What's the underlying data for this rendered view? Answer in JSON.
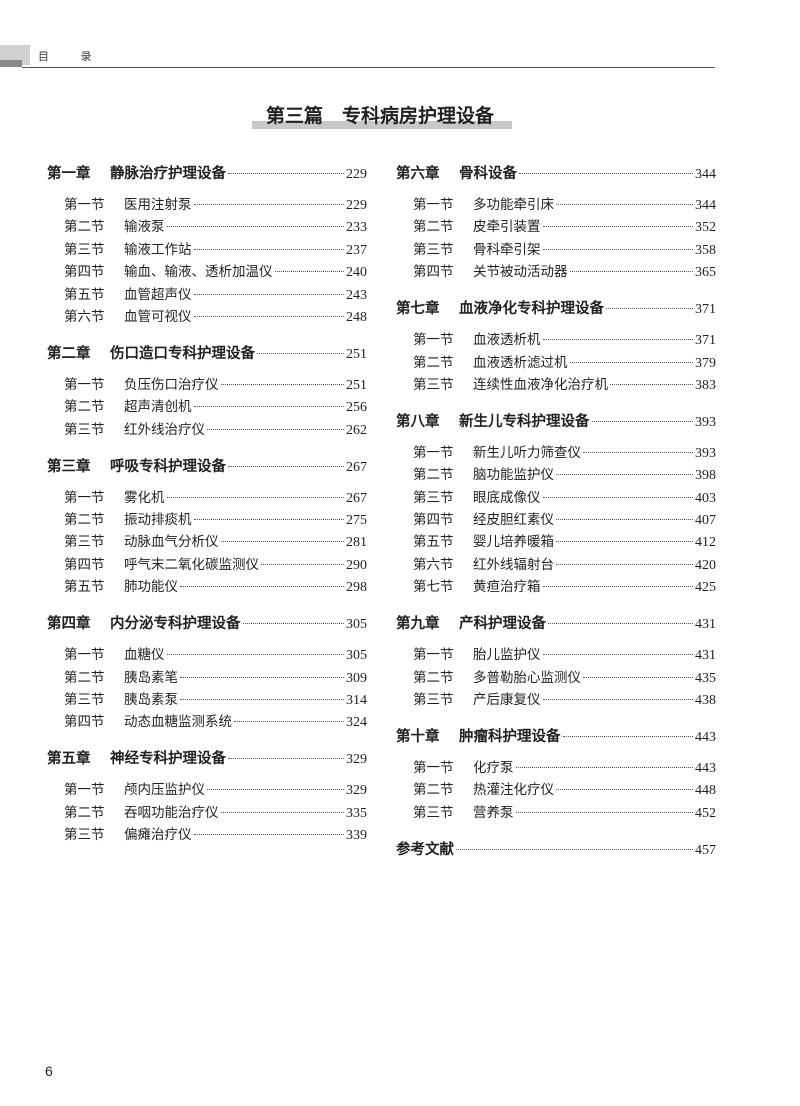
{
  "header": {
    "running_head": "目 录"
  },
  "part_title": "第三篇　专科病房护理设备",
  "left_column": [
    {
      "label": "第一章",
      "title": "静脉治疗护理设备",
      "page": "229",
      "sections": [
        {
          "label": "第一节",
          "title": "医用注射泵",
          "page": "229"
        },
        {
          "label": "第二节",
          "title": "输液泵",
          "page": "233"
        },
        {
          "label": "第三节",
          "title": "输液工作站",
          "page": "237"
        },
        {
          "label": "第四节",
          "title": "输血、输液、透析加温仪",
          "page": "240"
        },
        {
          "label": "第五节",
          "title": "血管超声仪",
          "page": "243"
        },
        {
          "label": "第六节",
          "title": "血管可视仪",
          "page": "248"
        }
      ]
    },
    {
      "label": "第二章",
      "title": "伤口造口专科护理设备",
      "page": "251",
      "sections": [
        {
          "label": "第一节",
          "title": "负压伤口治疗仪",
          "page": "251"
        },
        {
          "label": "第二节",
          "title": "超声清创机",
          "page": "256"
        },
        {
          "label": "第三节",
          "title": "红外线治疗仪",
          "page": "262"
        }
      ]
    },
    {
      "label": "第三章",
      "title": "呼吸专科护理设备",
      "page": "267",
      "sections": [
        {
          "label": "第一节",
          "title": "雾化机",
          "page": "267"
        },
        {
          "label": "第二节",
          "title": "振动排痰机",
          "page": "275"
        },
        {
          "label": "第三节",
          "title": "动脉血气分析仪",
          "page": "281"
        },
        {
          "label": "第四节",
          "title": "呼气末二氧化碳监测仪",
          "page": "290"
        },
        {
          "label": "第五节",
          "title": "肺功能仪",
          "page": "298"
        }
      ]
    },
    {
      "label": "第四章",
      "title": "内分泌专科护理设备",
      "page": "305",
      "sections": [
        {
          "label": "第一节",
          "title": "血糖仪",
          "page": "305"
        },
        {
          "label": "第二节",
          "title": "胰岛素笔",
          "page": "309"
        },
        {
          "label": "第三节",
          "title": "胰岛素泵",
          "page": "314"
        },
        {
          "label": "第四节",
          "title": "动态血糖监测系统",
          "page": "324"
        }
      ]
    },
    {
      "label": "第五章",
      "title": "神经专科护理设备",
      "page": "329",
      "sections": [
        {
          "label": "第一节",
          "title": "颅内压监护仪",
          "page": "329"
        },
        {
          "label": "第二节",
          "title": "吞咽功能治疗仪",
          "page": "335"
        },
        {
          "label": "第三节",
          "title": "偏瘫治疗仪",
          "page": "339"
        }
      ]
    }
  ],
  "right_column": [
    {
      "label": "第六章",
      "title": "骨科设备",
      "page": "344",
      "sections": [
        {
          "label": "第一节",
          "title": "多功能牵引床",
          "page": "344"
        },
        {
          "label": "第二节",
          "title": "皮牵引装置",
          "page": "352"
        },
        {
          "label": "第三节",
          "title": "骨科牵引架",
          "page": "358"
        },
        {
          "label": "第四节",
          "title": "关节被动活动器",
          "page": "365"
        }
      ]
    },
    {
      "label": "第七章",
      "title": "血液净化专科护理设备",
      "page": "371",
      "sections": [
        {
          "label": "第一节",
          "title": "血液透析机",
          "page": "371"
        },
        {
          "label": "第二节",
          "title": "血液透析滤过机",
          "page": "379"
        },
        {
          "label": "第三节",
          "title": "连续性血液净化治疗机",
          "page": "383"
        }
      ]
    },
    {
      "label": "第八章",
      "title": "新生儿专科护理设备",
      "page": "393",
      "sections": [
        {
          "label": "第一节",
          "title": "新生儿听力筛查仪",
          "page": "393"
        },
        {
          "label": "第二节",
          "title": "脑功能监护仪",
          "page": "398"
        },
        {
          "label": "第三节",
          "title": "眼底成像仪",
          "page": "403"
        },
        {
          "label": "第四节",
          "title": "经皮胆红素仪",
          "page": "407"
        },
        {
          "label": "第五节",
          "title": "婴儿培养暖箱",
          "page": "412"
        },
        {
          "label": "第六节",
          "title": "红外线辐射台",
          "page": "420"
        },
        {
          "label": "第七节",
          "title": "黄疸治疗箱",
          "page": "425"
        }
      ]
    },
    {
      "label": "第九章",
      "title": "产科护理设备",
      "page": "431",
      "sections": [
        {
          "label": "第一节",
          "title": "胎儿监护仪",
          "page": "431"
        },
        {
          "label": "第二节",
          "title": "多普勒胎心监测仪",
          "page": "435"
        },
        {
          "label": "第三节",
          "title": "产后康复仪",
          "page": "438"
        }
      ]
    },
    {
      "label": "第十章",
      "title": "肿瘤科护理设备",
      "page": "443",
      "sections": [
        {
          "label": "第一节",
          "title": "化疗泵",
          "page": "443"
        },
        {
          "label": "第二节",
          "title": "热灌注化疗仪",
          "page": "448"
        },
        {
          "label": "第三节",
          "title": "营养泵",
          "page": "452"
        }
      ]
    }
  ],
  "references": {
    "title": "参考文献",
    "page": "457"
  },
  "folio": "6"
}
